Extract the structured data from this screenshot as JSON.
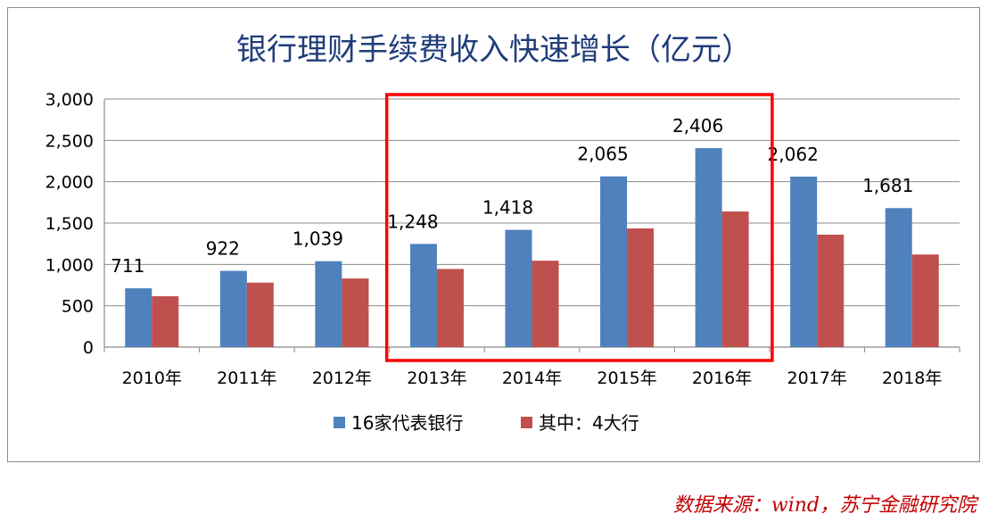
{
  "chart_data": {
    "type": "bar",
    "title": "银行理财手续费收入快速增长（亿元）",
    "categories": [
      "2010年",
      "2011年",
      "2012年",
      "2013年",
      "2014年",
      "2015年",
      "2016年",
      "2017年",
      "2018年"
    ],
    "series": [
      {
        "name": "16家代表银行",
        "color": "#4f81bd",
        "values": [
          711,
          922,
          1039,
          1248,
          1418,
          2065,
          2406,
          2062,
          1681
        ]
      },
      {
        "name": "其中：4大行",
        "color": "#c0504d",
        "values": [
          615,
          780,
          830,
          945,
          1045,
          1435,
          1640,
          1360,
          1120
        ]
      }
    ],
    "data_labels": [
      "711",
      "922",
      "1,039",
      "1,248",
      "1,418",
      "2,065",
      "2,406",
      "2,062",
      "1,681"
    ],
    "y_ticks": [
      "0",
      "500",
      "1,000",
      "1,500",
      "2,000",
      "2,500",
      "3,000"
    ],
    "ylim": [
      0,
      3000
    ],
    "grid": true,
    "legend_position": "bottom",
    "highlight": {
      "from_category": "2013年",
      "to_category": "2016年",
      "color": "#ff0000"
    }
  },
  "source_note": "数据来源：wind，苏宁金融研究院"
}
